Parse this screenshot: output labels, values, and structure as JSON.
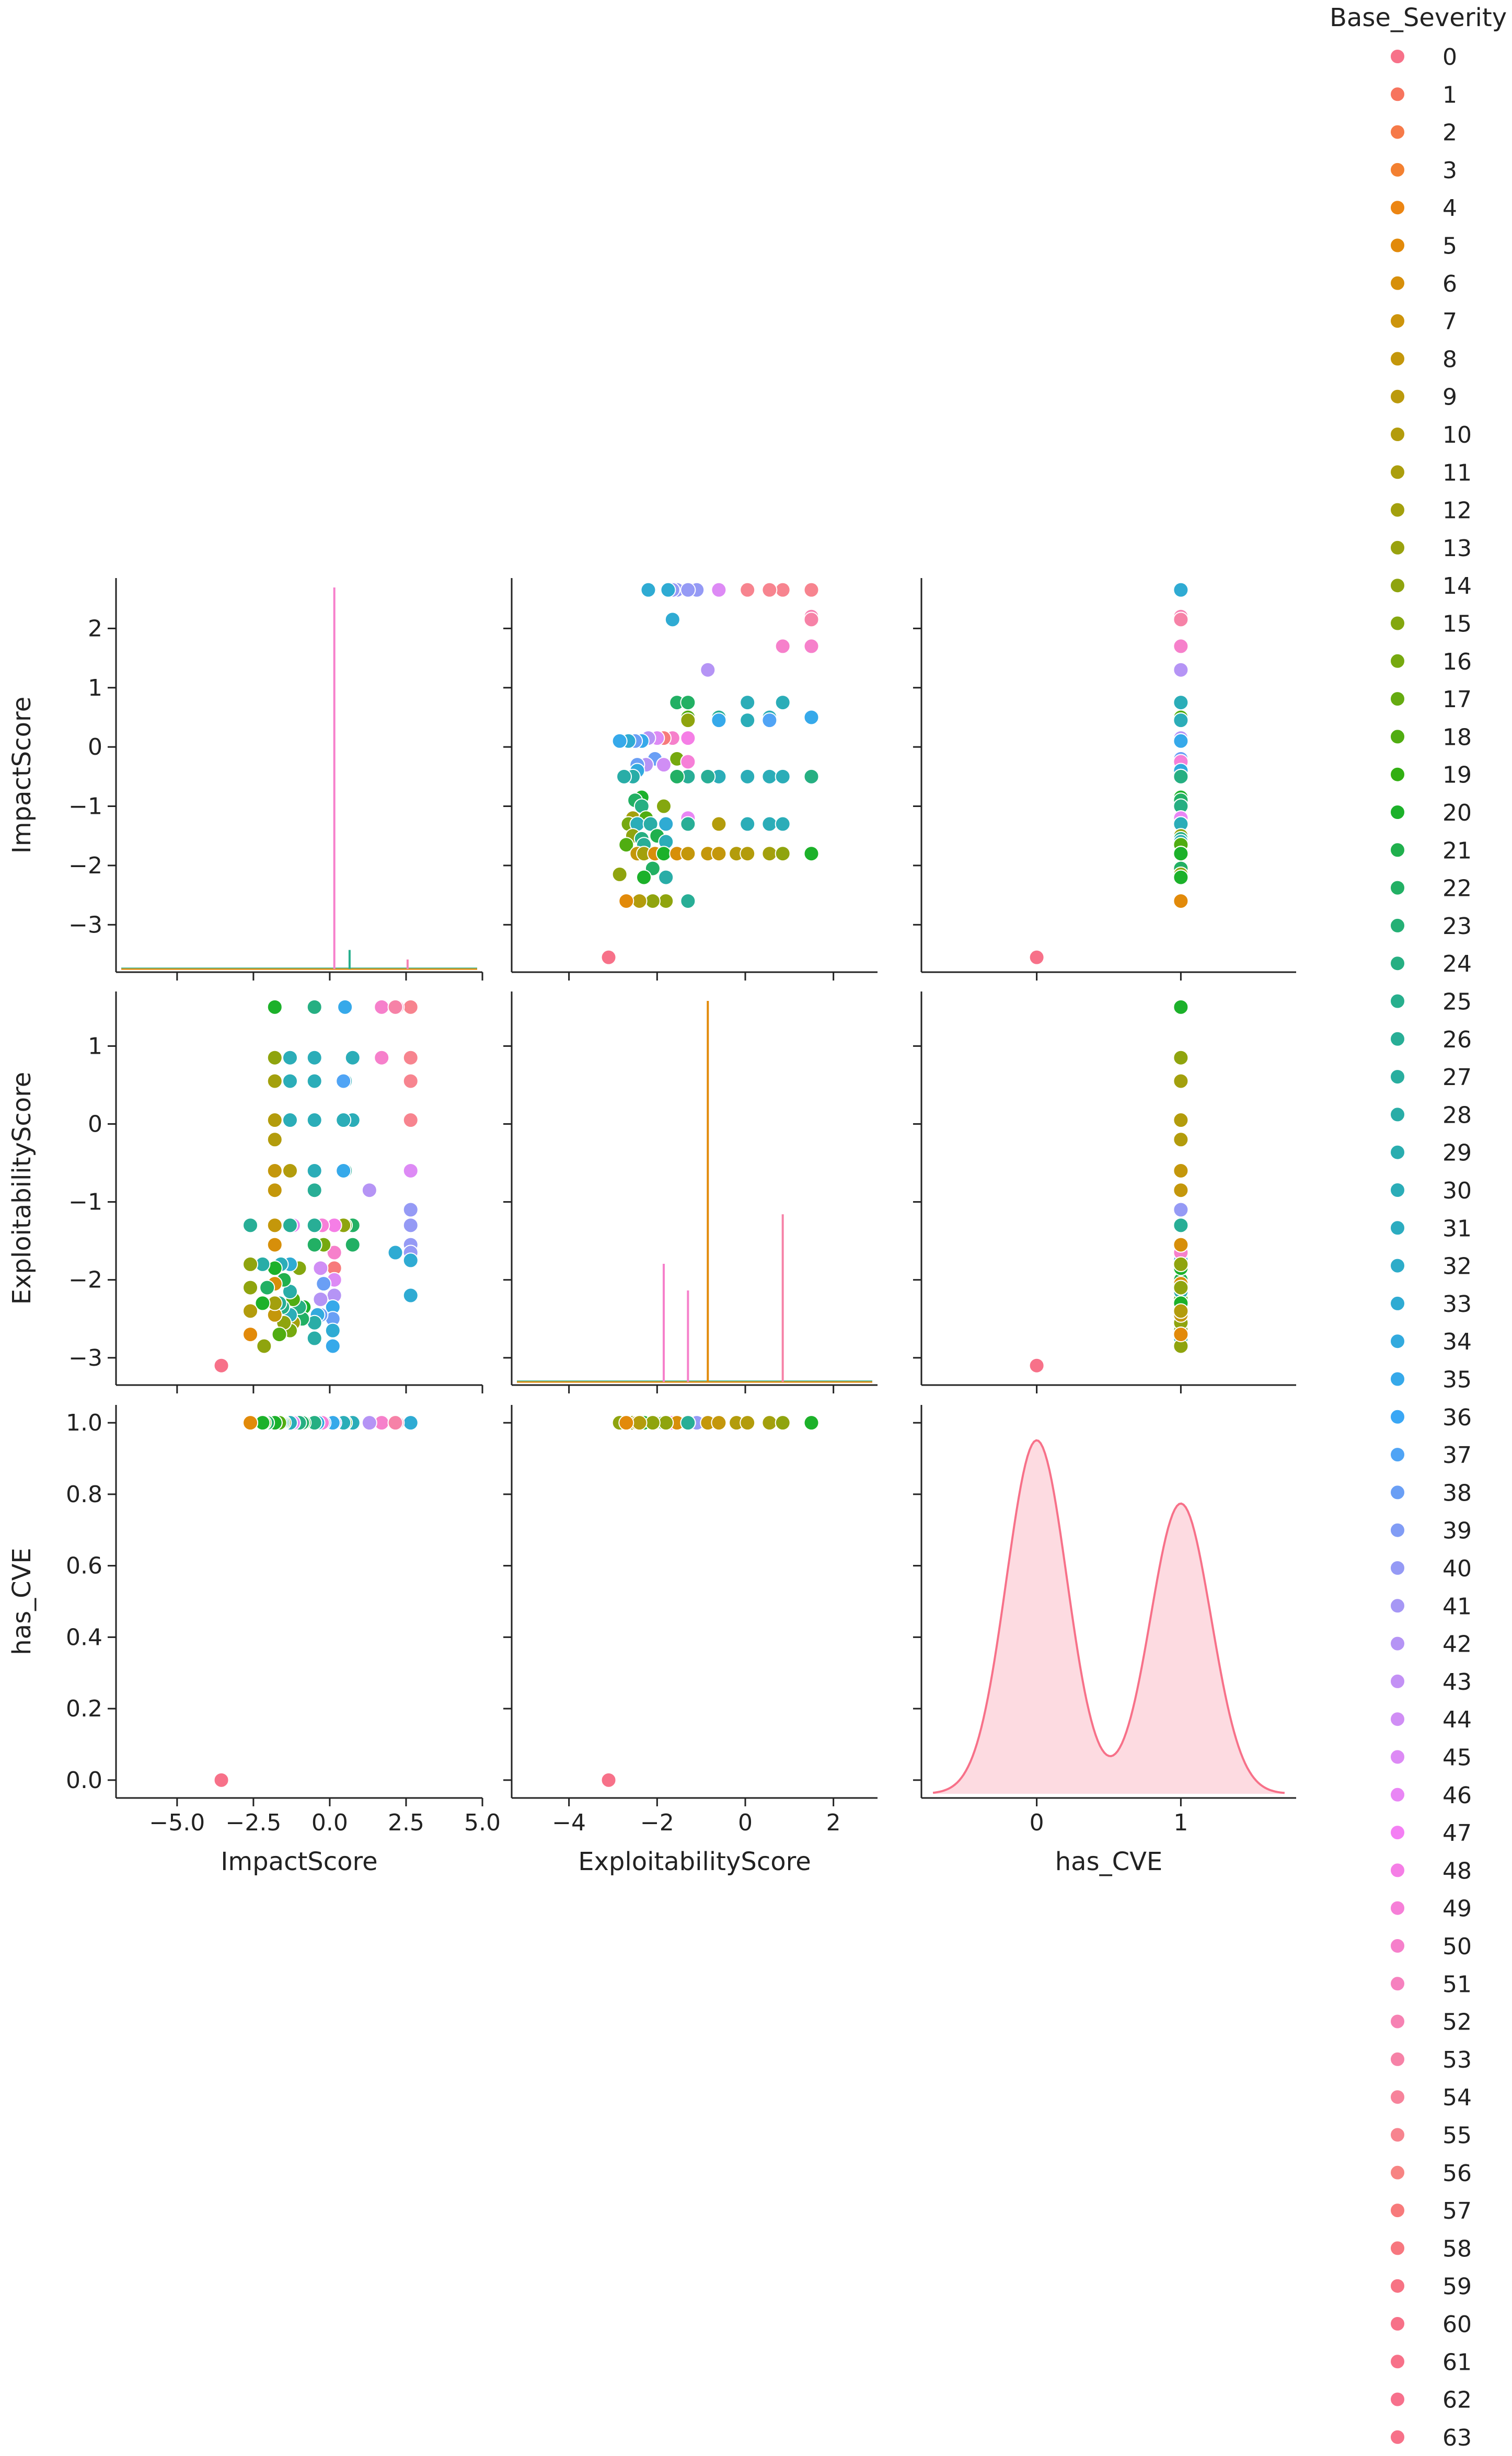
{
  "chart_data": {
    "type": "pairplot",
    "variables": [
      "ImpactScore",
      "ExploitabilityScore",
      "has_CVE"
    ],
    "axis_labels": {
      "ImpactScore": "ImpactScore",
      "ExploitabilityScore": "ExploitabilityScore",
      "has_CVE": "has_CVE"
    },
    "ranges": {
      "ImpactScore": [
        -7.0,
        5.0
      ],
      "ExploitabilityScore": [
        -5.3,
        3.0
      ],
      "has_CVE": [
        -0.8,
        1.8
      ]
    },
    "row_ranges": {
      "ImpactScore": [
        -3.8,
        2.85
      ],
      "ExploitabilityScore": [
        -3.35,
        1.7
      ],
      "has_CVE": [
        -0.05,
        1.05
      ]
    },
    "x_ticks": {
      "ImpactScore": [
        -5.0,
        -2.5,
        0.0,
        2.5,
        5.0
      ],
      "ExploitabilityScore": [
        -4,
        -2,
        0,
        2
      ],
      "has_CVE": [
        0,
        1
      ]
    },
    "x_tick_labels": {
      "ImpactScore": [
        "−5.0",
        "−2.5",
        "0.0",
        "2.5",
        "5.0"
      ],
      "ExploitabilityScore": [
        "−4",
        "−2",
        "0",
        "2"
      ],
      "has_CVE": [
        "0",
        "1"
      ]
    },
    "y_ticks": {
      "ImpactScore": [
        -3,
        -2,
        -1,
        0,
        1,
        2
      ],
      "ExploitabilityScore": [
        -3,
        -2,
        -1,
        0,
        1
      ],
      "has_CVE": [
        0.0,
        0.2,
        0.4,
        0.6,
        0.8,
        1.0
      ]
    },
    "y_tick_labels": {
      "ImpactScore": [
        "−3",
        "−2",
        "−1",
        "0",
        "1",
        "2"
      ],
      "ExploitabilityScore": [
        "−3",
        "−2",
        "−1",
        "0",
        "1"
      ],
      "has_CVE": [
        "0.0",
        "0.2",
        "0.4",
        "0.6",
        "0.8",
        "1.0"
      ]
    },
    "legend": {
      "title": "Base_Severity",
      "entries": [
        "0",
        "1",
        "2",
        "3",
        "4",
        "5",
        "6",
        "7",
        "8",
        "9",
        "10",
        "11",
        "12",
        "13",
        "14",
        "15",
        "16",
        "17",
        "18",
        "19",
        "20",
        "21",
        "22",
        "23",
        "24",
        "25",
        "26",
        "27",
        "28",
        "29",
        "30",
        "31",
        "32",
        "33",
        "34",
        "35",
        "36",
        "37",
        "38",
        "39",
        "40",
        "41",
        "42",
        "43",
        "44",
        "45",
        "46",
        "47",
        "48",
        "49",
        "50",
        "51",
        "52",
        "53",
        "54",
        "55",
        "56",
        "57",
        "58",
        "59",
        "60",
        "61",
        "62",
        "63"
      ],
      "colors": [
        "#f77189",
        "#f7745e",
        "#f67a49",
        "#f38031",
        "#ec8512",
        "#e28a0a",
        "#d78f0a",
        "#cd940b",
        "#c4970b",
        "#bb9a0c",
        "#b39c0c",
        "#ab9e0d",
        "#a3a00d",
        "#99a20e",
        "#8fa40e",
        "#84a70f",
        "#76a90f",
        "#65ab10",
        "#50ad11",
        "#31af12",
        "#1cb12a",
        "#20b04d",
        "#22b064",
        "#25b075",
        "#26af82",
        "#27af8d",
        "#28ae96",
        "#29ae9f",
        "#29ada7",
        "#2aadaf",
        "#2badb8",
        "#2cacc0",
        "#2dacc9",
        "#2fabd3",
        "#32aade",
        "#36a9ea",
        "#3aa7f5",
        "#50a4f5",
        "#6a9ff5",
        "#819cf5",
        "#959af5",
        "#a697f5",
        "#b594f5",
        "#c391f5",
        "#d08ef5",
        "#dd8af5",
        "#e986f5",
        "#f47ff4",
        "#f57ee6",
        "#f67fd8",
        "#f680cb",
        "#f681bf",
        "#f682b3",
        "#f682a7",
        "#f7839b",
        "#f7848f",
        "#f78483",
        "#f77a7b",
        "#f7777f",
        "#f77384",
        "#f77188",
        "#f77189",
        "#f7708c",
        "#f77189"
      ],
      "position": "right"
    },
    "hist_diag": {
      "ImpactScore": [
        {
          "color_index": 50,
          "x": 0.15,
          "height": 1.0
        },
        {
          "color_index": 25,
          "x": 0.65,
          "height": 0.05
        },
        {
          "color_index": 52,
          "x": 2.55,
          "height": 0.025
        }
      ],
      "ExploitabilityScore": [
        {
          "color_index": 5,
          "x": -0.85,
          "height": 1.0
        },
        {
          "color_index": 50,
          "x": -1.85,
          "height": 0.31
        },
        {
          "color_index": 50,
          "x": -1.3,
          "height": 0.24
        },
        {
          "color_index": 53,
          "x": 0.85,
          "height": 0.44
        }
      ]
    },
    "kde_diag": {
      "has_CVE": {
        "color": "#f77189",
        "label": "Base_Severity 0 density"
      }
    },
    "series": [
      {
        "impact": -3.55,
        "exploit": -3.1,
        "has_cve": 0,
        "color_index": 0
      },
      {
        "impact": 2.65,
        "exploit": 0.85,
        "has_cve": 1,
        "color_index": 55
      },
      {
        "impact": 2.65,
        "exploit": 1.5,
        "has_cve": 1,
        "color_index": 55
      },
      {
        "impact": 2.65,
        "exploit": 0.55,
        "has_cve": 1,
        "color_index": 55
      },
      {
        "impact": 2.65,
        "exploit": 0.05,
        "has_cve": 1,
        "color_index": 55
      },
      {
        "impact": 2.65,
        "exploit": -0.6,
        "has_cve": 1,
        "color_index": 45
      },
      {
        "impact": 2.65,
        "exploit": -1.55,
        "has_cve": 1,
        "color_index": 40
      },
      {
        "impact": 2.65,
        "exploit": -1.65,
        "has_cve": 1,
        "color_index": 40
      },
      {
        "impact": 2.65,
        "exploit": -1.1,
        "has_cve": 1,
        "color_index": 40
      },
      {
        "impact": 2.65,
        "exploit": -1.3,
        "has_cve": 1,
        "color_index": 40
      },
      {
        "impact": 2.65,
        "exploit": -2.2,
        "has_cve": 1,
        "color_index": 33
      },
      {
        "impact": 2.65,
        "exploit": -1.75,
        "has_cve": 1,
        "color_index": 33
      },
      {
        "impact": 2.2,
        "exploit": 1.5,
        "has_cve": 1,
        "color_index": 52
      },
      {
        "impact": 1.7,
        "exploit": 1.5,
        "has_cve": 1,
        "color_index": 50
      },
      {
        "impact": 1.7,
        "exploit": 0.85,
        "has_cve": 1,
        "color_index": 50
      },
      {
        "impact": 1.3,
        "exploit": -0.85,
        "has_cve": 1,
        "color_index": 42
      },
      {
        "impact": 2.15,
        "exploit": -1.65,
        "has_cve": 1,
        "color_index": 33
      },
      {
        "impact": 2.15,
        "exploit": 1.5,
        "has_cve": 1,
        "color_index": 53
      },
      {
        "impact": 0.75,
        "exploit": -1.55,
        "has_cve": 1,
        "color_index": 22
      },
      {
        "impact": 0.75,
        "exploit": -1.3,
        "has_cve": 1,
        "color_index": 22
      },
      {
        "impact": 0.75,
        "exploit": 0.85,
        "has_cve": 1,
        "color_index": 30
      },
      {
        "impact": 0.75,
        "exploit": 0.05,
        "has_cve": 1,
        "color_index": 30
      },
      {
        "impact": 0.5,
        "exploit": 1.5,
        "has_cve": 1,
        "color_index": 35
      },
      {
        "impact": 0.5,
        "exploit": 0.55,
        "has_cve": 1,
        "color_index": 30
      },
      {
        "impact": 0.5,
        "exploit": -0.6,
        "has_cve": 1,
        "color_index": 26
      },
      {
        "impact": 0.5,
        "exploit": -1.3,
        "has_cve": 1,
        "color_index": 18
      },
      {
        "impact": 0.45,
        "exploit": 0.55,
        "has_cve": 1,
        "color_index": 37
      },
      {
        "impact": 0.45,
        "exploit": -0.6,
        "has_cve": 1,
        "color_index": 35
      },
      {
        "impact": 0.45,
        "exploit": -1.3,
        "has_cve": 1,
        "color_index": 14
      },
      {
        "impact": 0.45,
        "exploit": 0.05,
        "has_cve": 1,
        "color_index": 30
      },
      {
        "impact": 0.15,
        "exploit": -1.65,
        "has_cve": 1,
        "color_index": 50
      },
      {
        "impact": 0.15,
        "exploit": -1.3,
        "has_cve": 1,
        "color_index": 48
      },
      {
        "impact": 0.15,
        "exploit": -1.85,
        "has_cve": 1,
        "color_index": 57
      },
      {
        "impact": 0.15,
        "exploit": -2.0,
        "has_cve": 1,
        "color_index": 45
      },
      {
        "impact": 0.15,
        "exploit": -2.2,
        "has_cve": 1,
        "color_index": 42
      },
      {
        "impact": 0.1,
        "exploit": -2.35,
        "has_cve": 1,
        "color_index": 35
      },
      {
        "impact": 0.1,
        "exploit": -2.5,
        "has_cve": 1,
        "color_index": 38
      },
      {
        "impact": 0.1,
        "exploit": -2.65,
        "has_cve": 1,
        "color_index": 33
      },
      {
        "impact": 0.1,
        "exploit": -2.85,
        "has_cve": 1,
        "color_index": 35
      },
      {
        "impact": -0.2,
        "exploit": -1.55,
        "has_cve": 1,
        "color_index": 16
      },
      {
        "impact": -0.2,
        "exploit": -2.05,
        "has_cve": 1,
        "color_index": 38
      },
      {
        "impact": -0.3,
        "exploit": -1.85,
        "has_cve": 1,
        "color_index": 44
      },
      {
        "impact": -0.3,
        "exploit": -2.25,
        "has_cve": 1,
        "color_index": 42
      },
      {
        "impact": -0.3,
        "exploit": -2.45,
        "has_cve": 1,
        "color_index": 38
      },
      {
        "impact": -0.25,
        "exploit": -1.3,
        "has_cve": 1,
        "color_index": 49
      },
      {
        "impact": -0.4,
        "exploit": -2.45,
        "has_cve": 1,
        "color_index": 34
      },
      {
        "impact": -0.5,
        "exploit": -2.55,
        "has_cve": 1,
        "color_index": 28
      },
      {
        "impact": -0.5,
        "exploit": -2.75,
        "has_cve": 1,
        "color_index": 28
      },
      {
        "impact": -0.5,
        "exploit": 0.05,
        "has_cve": 1,
        "color_index": 30
      },
      {
        "impact": -0.5,
        "exploit": 0.55,
        "has_cve": 1,
        "color_index": 30
      },
      {
        "impact": -0.5,
        "exploit": 0.85,
        "has_cve": 1,
        "color_index": 30
      },
      {
        "impact": -0.5,
        "exploit": -0.6,
        "has_cve": 1,
        "color_index": 30
      },
      {
        "impact": -0.5,
        "exploit": -0.85,
        "has_cve": 1,
        "color_index": 26
      },
      {
        "impact": -0.5,
        "exploit": -1.3,
        "has_cve": 1,
        "color_index": 26
      },
      {
        "impact": -0.5,
        "exploit": -1.55,
        "has_cve": 1,
        "color_index": 22
      },
      {
        "impact": -0.5,
        "exploit": 1.5,
        "has_cve": 1,
        "color_index": 24
      },
      {
        "impact": -0.85,
        "exploit": -2.35,
        "has_cve": 1,
        "color_index": 20
      },
      {
        "impact": -0.9,
        "exploit": -2.5,
        "has_cve": 1,
        "color_index": 22
      },
      {
        "impact": -1.0,
        "exploit": -1.85,
        "has_cve": 1,
        "color_index": 15
      },
      {
        "impact": -1.0,
        "exploit": -2.35,
        "has_cve": 1,
        "color_index": 24
      },
      {
        "impact": -1.2,
        "exploit": -2.55,
        "has_cve": 1,
        "color_index": 12
      },
      {
        "impact": -1.2,
        "exploit": -2.25,
        "has_cve": 1,
        "color_index": 18
      },
      {
        "impact": -1.2,
        "exploit": -1.3,
        "has_cve": 1,
        "color_index": 46
      },
      {
        "impact": -1.3,
        "exploit": -2.65,
        "has_cve": 1,
        "color_index": 16
      },
      {
        "impact": -1.3,
        "exploit": -2.45,
        "has_cve": 1,
        "color_index": 30
      },
      {
        "impact": -1.3,
        "exploit": -2.15,
        "has_cve": 1,
        "color_index": 28
      },
      {
        "impact": -1.3,
        "exploit": -1.8,
        "has_cve": 1,
        "color_index": 33
      },
      {
        "impact": -1.3,
        "exploit": -1.3,
        "has_cve": 1,
        "color_index": 26
      },
      {
        "impact": -1.3,
        "exploit": -0.6,
        "has_cve": 1,
        "color_index": 10
      },
      {
        "impact": -1.3,
        "exploit": 0.55,
        "has_cve": 1,
        "color_index": 30
      },
      {
        "impact": -1.3,
        "exploit": 0.85,
        "has_cve": 1,
        "color_index": 30
      },
      {
        "impact": -1.3,
        "exploit": 0.05,
        "has_cve": 1,
        "color_index": 30
      },
      {
        "impact": -1.5,
        "exploit": -2.0,
        "has_cve": 1,
        "color_index": 21
      },
      {
        "impact": -1.5,
        "exploit": -2.55,
        "has_cve": 1,
        "color_index": 14
      },
      {
        "impact": -1.55,
        "exploit": -2.35,
        "has_cve": 1,
        "color_index": 24
      },
      {
        "impact": -1.6,
        "exploit": -1.8,
        "has_cve": 1,
        "color_index": 30
      },
      {
        "impact": -1.65,
        "exploit": -2.3,
        "has_cve": 1,
        "color_index": 26
      },
      {
        "impact": -1.65,
        "exploit": -2.7,
        "has_cve": 1,
        "color_index": 18
      },
      {
        "impact": -1.8,
        "exploit": -2.45,
        "has_cve": 1,
        "color_index": 8
      },
      {
        "impact": -1.8,
        "exploit": -2.3,
        "has_cve": 1,
        "color_index": 12
      },
      {
        "impact": -1.8,
        "exploit": -2.05,
        "has_cve": 1,
        "color_index": 6
      },
      {
        "impact": -1.8,
        "exploit": -1.85,
        "has_cve": 1,
        "color_index": 20
      },
      {
        "impact": -1.8,
        "exploit": -1.55,
        "has_cve": 1,
        "color_index": 6
      },
      {
        "impact": -1.8,
        "exploit": -1.3,
        "has_cve": 1,
        "color_index": 8
      },
      {
        "impact": -1.8,
        "exploit": -0.85,
        "has_cve": 1,
        "color_index": 8
      },
      {
        "impact": -1.8,
        "exploit": -0.6,
        "has_cve": 1,
        "color_index": 8
      },
      {
        "impact": -1.8,
        "exploit": -0.2,
        "has_cve": 1,
        "color_index": 10
      },
      {
        "impact": -1.8,
        "exploit": 0.05,
        "has_cve": 1,
        "color_index": 10
      },
      {
        "impact": -1.8,
        "exploit": 0.55,
        "has_cve": 1,
        "color_index": 12
      },
      {
        "impact": -1.8,
        "exploit": 0.85,
        "has_cve": 1,
        "color_index": 14
      },
      {
        "impact": -1.8,
        "exploit": 1.5,
        "has_cve": 1,
        "color_index": 20
      },
      {
        "impact": -2.05,
        "exploit": -2.1,
        "has_cve": 1,
        "color_index": 22
      },
      {
        "impact": -2.15,
        "exploit": -2.85,
        "has_cve": 1,
        "color_index": 14
      },
      {
        "impact": -2.2,
        "exploit": -1.8,
        "has_cve": 1,
        "color_index": 28
      },
      {
        "impact": -2.2,
        "exploit": -2.3,
        "has_cve": 1,
        "color_index": 20
      },
      {
        "impact": -2.6,
        "exploit": -1.3,
        "has_cve": 1,
        "color_index": 26
      },
      {
        "impact": -2.6,
        "exploit": -1.8,
        "has_cve": 1,
        "color_index": 14
      },
      {
        "impact": -2.6,
        "exploit": -2.1,
        "has_cve": 1,
        "color_index": 14
      },
      {
        "impact": -2.6,
        "exploit": -2.4,
        "has_cve": 1,
        "color_index": 10
      },
      {
        "impact": -2.6,
        "exploit": -2.7,
        "has_cve": 1,
        "color_index": 5
      }
    ]
  }
}
